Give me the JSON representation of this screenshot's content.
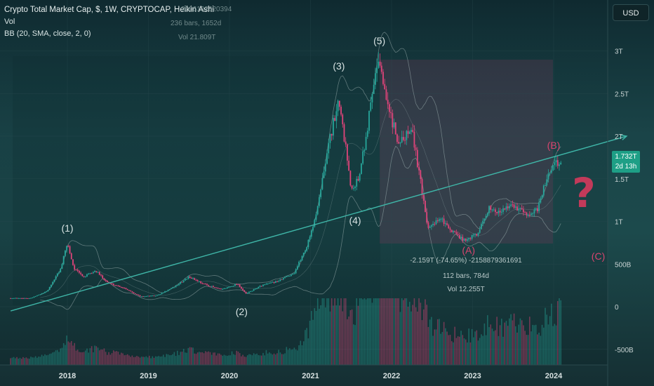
{
  "header": {
    "title": "Crypto Total Market Cap, $, 1W, CRYPTOCAP, Heikin Ashi",
    "vol": "Vol",
    "bb": "BB (20, SMA, close, 2, 0)"
  },
  "ghost_overlay": [
    "2006102620394",
    "236 bars, 1652d",
    "Vol 21.809T"
  ],
  "currency_button": "USD",
  "price_badge": {
    "price": "1.732T",
    "countdown": "2d 13h"
  },
  "colors": {
    "up": "#26a69a",
    "down": "#e0447a",
    "trendline": "#3fb6a8",
    "wave_label": "#d7e2e2",
    "wave_label_alt": "#d9456f",
    "question_mark": "#c23a5a",
    "measure_box": "#7a3a5a",
    "badge": "#1e9f86"
  },
  "question_mark_icon": "question-mark-icon",
  "chart_data": {
    "type": "candlestick",
    "style": "heikin-ashi",
    "timeframe": "1W",
    "series": "TOTAL",
    "y_axis": {
      "ticks": [
        "3T",
        "2.5T",
        "2T",
        "1.5T",
        "1T",
        "500B",
        "0",
        "-500B"
      ],
      "range_T": [
        -0.55,
        3.05
      ]
    },
    "x_axis": {
      "ticks": [
        "2018",
        "2019",
        "2020",
        "2021",
        "2022",
        "2023",
        "2024"
      ],
      "range_years": [
        2017.3,
        2024.25
      ]
    },
    "price_path": [
      [
        2017.3,
        0.1
      ],
      [
        2017.55,
        0.1
      ],
      [
        2017.75,
        0.18
      ],
      [
        2017.92,
        0.45
      ],
      [
        2018.0,
        0.75
      ],
      [
        2018.08,
        0.45
      ],
      [
        2018.2,
        0.35
      ],
      [
        2018.35,
        0.42
      ],
      [
        2018.5,
        0.28
      ],
      [
        2018.7,
        0.22
      ],
      [
        2018.9,
        0.12
      ],
      [
        2019.1,
        0.13
      ],
      [
        2019.3,
        0.22
      ],
      [
        2019.5,
        0.35
      ],
      [
        2019.7,
        0.26
      ],
      [
        2019.9,
        0.2
      ],
      [
        2020.1,
        0.27
      ],
      [
        2020.2,
        0.15
      ],
      [
        2020.4,
        0.25
      ],
      [
        2020.6,
        0.3
      ],
      [
        2020.8,
        0.4
      ],
      [
        2020.95,
        0.7
      ],
      [
        2021.05,
        1.0
      ],
      [
        2021.2,
        1.8
      ],
      [
        2021.35,
        2.45
      ],
      [
        2021.5,
        1.4
      ],
      [
        2021.6,
        1.5
      ],
      [
        2021.75,
        2.4
      ],
      [
        2021.85,
        2.95
      ],
      [
        2021.95,
        2.35
      ],
      [
        2022.1,
        1.9
      ],
      [
        2022.25,
        2.1
      ],
      [
        2022.35,
        1.5
      ],
      [
        2022.45,
        0.9
      ],
      [
        2022.6,
        1.05
      ],
      [
        2022.75,
        0.88
      ],
      [
        2022.9,
        0.78
      ],
      [
        2023.05,
        0.85
      ],
      [
        2023.2,
        1.15
      ],
      [
        2023.35,
        1.12
      ],
      [
        2023.5,
        1.2
      ],
      [
        2023.65,
        1.08
      ],
      [
        2023.8,
        1.15
      ],
      [
        2023.9,
        1.45
      ],
      [
        2024.0,
        1.65
      ],
      [
        2024.1,
        1.732
      ]
    ],
    "bollinger_bands": {
      "length": 20,
      "basis": "SMA",
      "source": "close",
      "stdev": 2,
      "offset": 0
    },
    "wave_labels": [
      {
        "text": "(1)",
        "x": 2018.0,
        "y": 0.88
      },
      {
        "text": "(2)",
        "x": 2020.15,
        "y": -0.1
      },
      {
        "text": "(3)",
        "x": 2021.35,
        "y": 2.78
      },
      {
        "text": "(4)",
        "x": 2021.55,
        "y": 0.97
      },
      {
        "text": "(5)",
        "x": 2021.85,
        "y": 3.08
      },
      {
        "text": "(A)",
        "x": 2022.95,
        "y": 0.62
      },
      {
        "text": "(B)",
        "x": 2024.0,
        "y": 1.85
      },
      {
        "text": "(C)",
        "x": 2024.55,
        "y": 0.55
      }
    ],
    "trendline": {
      "from": [
        2017.3,
        -0.05
      ],
      "to": [
        2024.9,
        2.0
      ]
    },
    "measurement": {
      "text1": "-2.159T (-74.65%) -2158879361691",
      "text2": "112 bars, 784d",
      "text3": "Vol 12.255T"
    }
  }
}
